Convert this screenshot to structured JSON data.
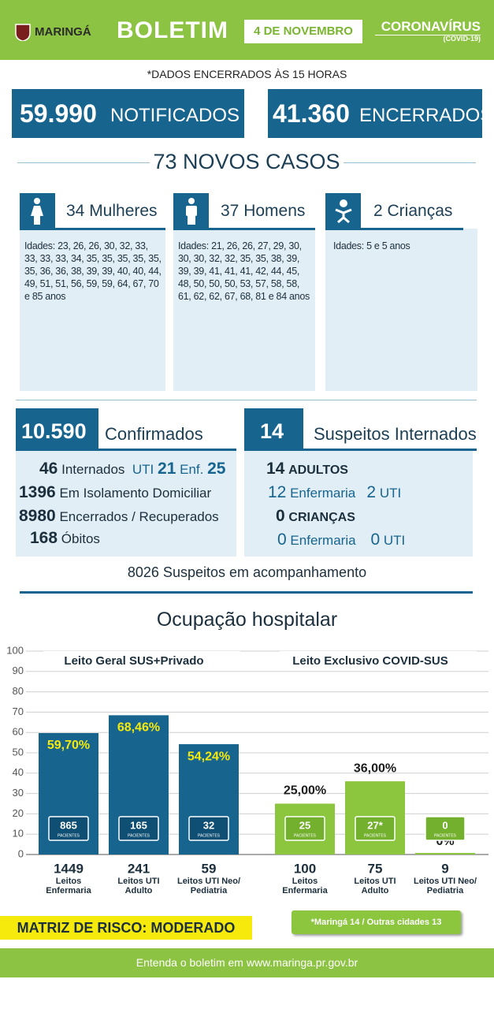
{
  "header": {
    "brand": "MARINGÁ",
    "title": "BOLETIM",
    "date": "4 DE NOVEMBRO",
    "topic": "CORONAVÍRUS",
    "topic_sub": "(COVID-19)"
  },
  "note": "*DADOS ENCERRADOS ÀS 15 HORAS",
  "totals": [
    {
      "value": "59.990",
      "label": "NOTIFICADOS"
    },
    {
      "value": "41.360",
      "label": "ENCERRADOS"
    }
  ],
  "new_cases": "73 NOVOS CASOS",
  "groups": [
    {
      "title": "34 Mulheres",
      "ages": "Idades: 23, 26, 26, 30, 32, 33, 33, 33, 33, 34, 35, 35, 35, 35, 35, 35, 36, 36, 38, 39, 39, 40, 40, 44, 49, 51, 51, 56, 59, 59, 64, 67, 70 e 85 anos"
    },
    {
      "title": "37 Homens",
      "ages": "Idades: 21, 26, 26, 27, 29, 30, 30, 30, 32, 32, 35, 35, 38, 39, 39, 39, 41, 41, 41, 42, 44, 45, 48, 50, 50, 50, 53, 57, 58, 58, 61, 62, 62, 67, 68, 81 e 84 anos"
    },
    {
      "title": "2 Crianças",
      "ages": "Idades: 5 e 5 anos"
    }
  ],
  "confirmed": {
    "value": "10.590",
    "label": "Confirmados",
    "hospitalized": {
      "value": "46",
      "label": "Internados",
      "icu_label": "UTI",
      "icu": "21",
      "ward_label": "Enf.",
      "ward": "25"
    },
    "rows": [
      {
        "value": "1396",
        "label": "Em Isolamento Domiciliar"
      },
      {
        "value": "8980",
        "label": "Encerrados / Recuperados"
      },
      {
        "value": "168",
        "label": "Óbitos"
      }
    ]
  },
  "suspects": {
    "value": "14",
    "label": "Suspeitos Internados",
    "adults": {
      "value": "14",
      "label": "ADULTOS",
      "ward": "12",
      "ward_label": "Enfermaria",
      "icu": "2",
      "icu_label": "UTI"
    },
    "children": {
      "value": "0",
      "label": "CRIANÇAS",
      "ward": "0",
      "ward_label": "Enfermaria",
      "icu": "0",
      "icu_label": "UTI"
    }
  },
  "monitoring": "8026 Suspeitos em acompanhamento",
  "chart_data": {
    "type": "bar",
    "title": "Ocupação hospitalar",
    "ylim": [
      0,
      100
    ],
    "yticks": [
      0,
      10,
      20,
      30,
      40,
      50,
      60,
      70,
      80,
      90,
      100
    ],
    "grid": true,
    "patients_label": "PACIENTES",
    "panels": [
      {
        "title": "Leito Geral SUS+Privado",
        "color": "#17658f",
        "categories": [
          "Leitos Enfermaria",
          "Leitos UTI Adulto",
          "Leitos UTI Neo/ Pediatria"
        ],
        "beds": [
          1449,
          241,
          59
        ],
        "values": [
          59.7,
          68.46,
          54.24
        ],
        "value_labels": [
          "59,70%",
          "68,46%",
          "54,24%"
        ],
        "patients": [
          865,
          165,
          32
        ]
      },
      {
        "title": "Leito Exclusivo COVID-SUS",
        "color": "#8cc63f",
        "categories": [
          "Leitos Enfermaria",
          "Leitos UTI Adulto",
          "Leitos UTI Neo/ Pediatria"
        ],
        "beds": [
          100,
          75,
          9
        ],
        "values": [
          25.0,
          36.0,
          0
        ],
        "value_labels": [
          "25,00%",
          "36,00%",
          "0%"
        ],
        "patients": [
          25,
          27,
          0
        ],
        "patient_labels": [
          "25",
          "27*",
          "0"
        ]
      }
    ],
    "footnote": "*Maringá 14 / Outras cidades 13"
  },
  "risk": "MATRIZ DE RISCO: MODERADO",
  "footer": "Entenda o boletim em www.maringa.pr.gov.br"
}
